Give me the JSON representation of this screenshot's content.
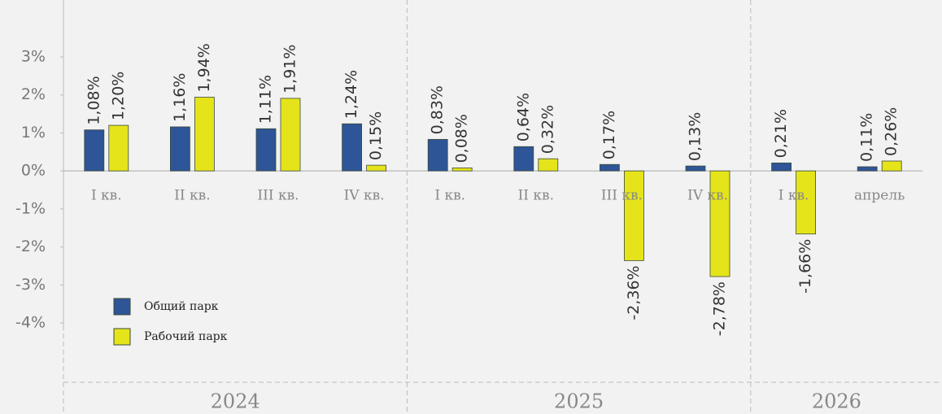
{
  "chart_data": {
    "type": "bar",
    "categories": [
      "I кв.",
      "II кв.",
      "III кв.",
      "IV кв.",
      "I кв.",
      "II кв.",
      "III кв.",
      "IV кв.",
      "I кв.",
      "апрель"
    ],
    "x_groups": [
      {
        "label": "2024",
        "count": 4
      },
      {
        "label": "2025",
        "count": 4
      },
      {
        "label": "2026",
        "count": 2
      }
    ],
    "series": [
      {
        "name": "Общий парк",
        "color": "#2e5597",
        "values": [
          1.08,
          1.16,
          1.11,
          1.24,
          0.83,
          0.64,
          0.17,
          0.13,
          0.21,
          0.11
        ],
        "value_labels": [
          "1,08%",
          "1,16%",
          "1,11%",
          "1,24%",
          "0,83%",
          "0,64%",
          "0,17%",
          "0,13%",
          "0,21%",
          "0,11%"
        ]
      },
      {
        "name": "Рабочий парк",
        "color": "#e5e41b",
        "values": [
          1.2,
          1.94,
          1.91,
          0.15,
          0.08,
          0.32,
          -2.36,
          -2.78,
          -1.66,
          0.26
        ],
        "value_labels": [
          "1,20%",
          "1,94%",
          "1,91%",
          "0,15%",
          "0,08%",
          "0,32%",
          "-2,36%",
          "-2,78%",
          "-1,66%",
          "0,26%"
        ]
      }
    ],
    "ylim": [
      -4,
      3
    ],
    "yticks": [
      {
        "value": 3,
        "label": "3%"
      },
      {
        "value": 2,
        "label": "2%"
      },
      {
        "value": 1,
        "label": "1%"
      },
      {
        "value": 0,
        "label": "0%"
      },
      {
        "value": -1,
        "label": "-1%"
      },
      {
        "value": -2,
        "label": "-2%"
      },
      {
        "value": -3,
        "label": "-3%"
      },
      {
        "value": -4,
        "label": "-4%"
      }
    ],
    "legend": "lower left"
  }
}
